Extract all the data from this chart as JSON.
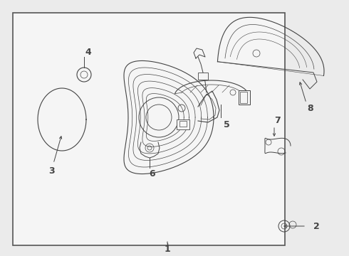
{
  "background_color": "#ebebeb",
  "box_fill": "#f5f5f5",
  "box_edge": "#555555",
  "line_color": "#444444",
  "fig_width": 4.9,
  "fig_height": 3.6,
  "dpi": 100
}
